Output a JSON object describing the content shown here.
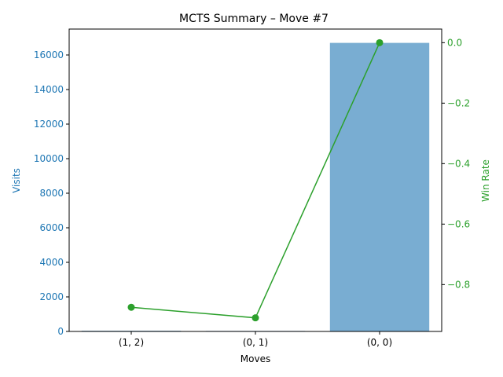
{
  "chart_data": {
    "type": "bar+line",
    "title": "MCTS Summary – Move #7",
    "xlabel": "Moves",
    "categories": [
      "(1, 2)",
      "(0, 1)",
      "(0, 0)"
    ],
    "series": [
      {
        "name": "Visits",
        "kind": "bar",
        "axis": "left",
        "values": [
          40,
          30,
          16700
        ]
      },
      {
        "name": "Win Rate",
        "kind": "line",
        "axis": "right",
        "values": [
          -0.875,
          -0.91,
          0.0
        ]
      }
    ],
    "left_axis": {
      "label": "Visits",
      "range": [
        0,
        17500
      ],
      "ticks": [
        0,
        2000,
        4000,
        6000,
        8000,
        10000,
        12000,
        14000,
        16000
      ],
      "tick_labels": [
        "0",
        "2000",
        "4000",
        "6000",
        "8000",
        "10000",
        "12000",
        "14000",
        "16000"
      ]
    },
    "right_axis": {
      "label": "Win Rate",
      "range": [
        -0.955,
        0.045
      ],
      "ticks": [
        -0.8,
        -0.6,
        -0.4,
        -0.2,
        0.0
      ],
      "tick_labels": [
        "−0.8",
        "−0.6",
        "−0.4",
        "−0.2",
        "0.0"
      ]
    },
    "grid": false,
    "colors": {
      "bar": "#1f77b4",
      "bar_opacity": 0.6,
      "line": "#2ca02c",
      "left_axis": "#1f77b4",
      "right_axis": "#2ca02c"
    }
  }
}
